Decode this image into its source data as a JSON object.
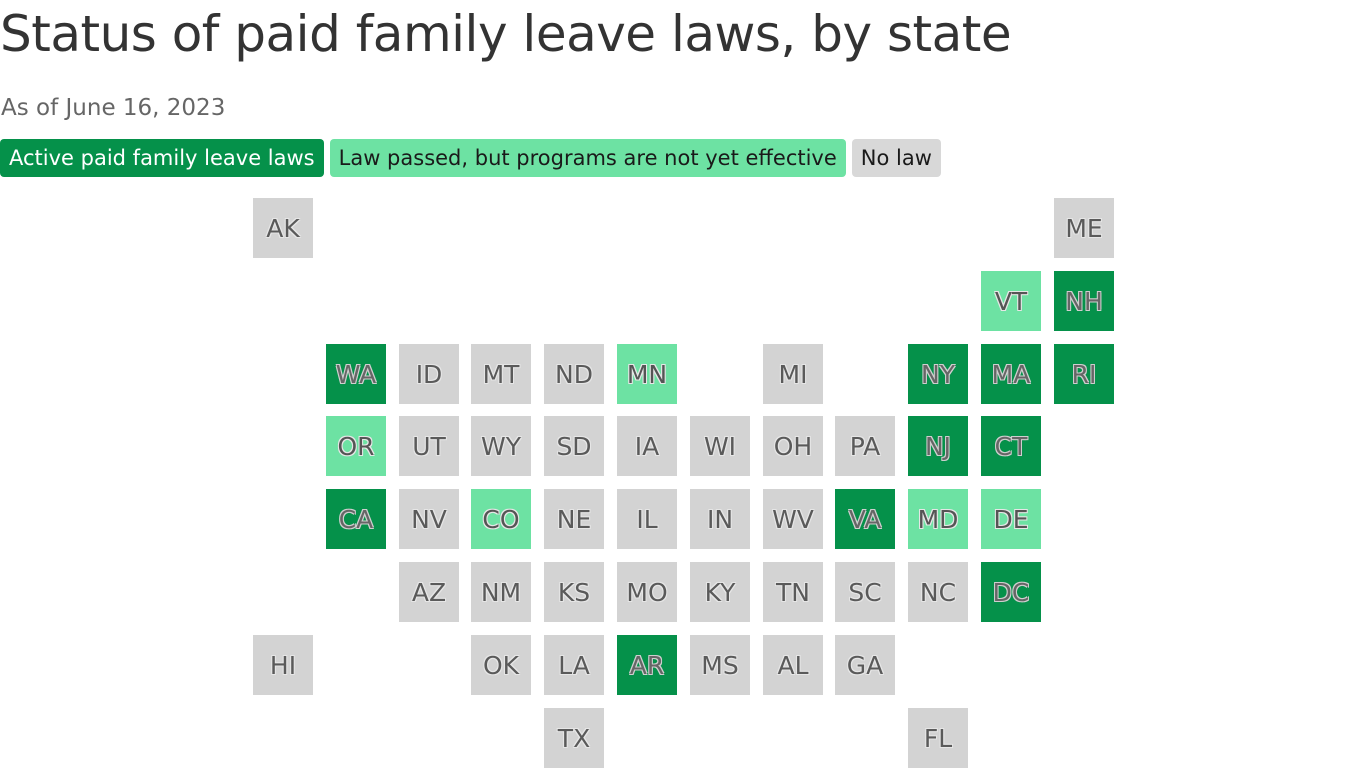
{
  "title": "Status of paid family leave laws, by state",
  "subtitle": "As of June 16, 2023",
  "legend": {
    "active": "Active paid family leave laws",
    "passed": "Law passed, but programs are not yet effective",
    "nolaw": "No law"
  },
  "colors": {
    "active": "#05914a",
    "passed": "#6de2a3",
    "nolaw": "#d3d3d3"
  },
  "states": [
    {
      "abbr": "AK",
      "status": "nolaw"
    },
    {
      "abbr": "ME",
      "status": "nolaw"
    },
    {
      "abbr": "VT",
      "status": "passed"
    },
    {
      "abbr": "NH",
      "status": "active"
    },
    {
      "abbr": "WA",
      "status": "active"
    },
    {
      "abbr": "ID",
      "status": "nolaw"
    },
    {
      "abbr": "MT",
      "status": "nolaw"
    },
    {
      "abbr": "ND",
      "status": "nolaw"
    },
    {
      "abbr": "MN",
      "status": "passed"
    },
    {
      "abbr": "MI",
      "status": "nolaw"
    },
    {
      "abbr": "NY",
      "status": "active"
    },
    {
      "abbr": "MA",
      "status": "active"
    },
    {
      "abbr": "RI",
      "status": "active"
    },
    {
      "abbr": "OR",
      "status": "passed"
    },
    {
      "abbr": "UT",
      "status": "nolaw"
    },
    {
      "abbr": "WY",
      "status": "nolaw"
    },
    {
      "abbr": "SD",
      "status": "nolaw"
    },
    {
      "abbr": "IA",
      "status": "nolaw"
    },
    {
      "abbr": "WI",
      "status": "nolaw"
    },
    {
      "abbr": "OH",
      "status": "nolaw"
    },
    {
      "abbr": "PA",
      "status": "nolaw"
    },
    {
      "abbr": "NJ",
      "status": "active"
    },
    {
      "abbr": "CT",
      "status": "active"
    },
    {
      "abbr": "CA",
      "status": "active"
    },
    {
      "abbr": "NV",
      "status": "nolaw"
    },
    {
      "abbr": "CO",
      "status": "passed"
    },
    {
      "abbr": "NE",
      "status": "nolaw"
    },
    {
      "abbr": "IL",
      "status": "nolaw"
    },
    {
      "abbr": "IN",
      "status": "nolaw"
    },
    {
      "abbr": "WV",
      "status": "nolaw"
    },
    {
      "abbr": "VA",
      "status": "active"
    },
    {
      "abbr": "MD",
      "status": "passed"
    },
    {
      "abbr": "DE",
      "status": "passed"
    },
    {
      "abbr": "AZ",
      "status": "nolaw"
    },
    {
      "abbr": "NM",
      "status": "nolaw"
    },
    {
      "abbr": "KS",
      "status": "nolaw"
    },
    {
      "abbr": "MO",
      "status": "nolaw"
    },
    {
      "abbr": "KY",
      "status": "nolaw"
    },
    {
      "abbr": "TN",
      "status": "nolaw"
    },
    {
      "abbr": "SC",
      "status": "nolaw"
    },
    {
      "abbr": "NC",
      "status": "nolaw"
    },
    {
      "abbr": "DC",
      "status": "active"
    },
    {
      "abbr": "HI",
      "status": "nolaw"
    },
    {
      "abbr": "OK",
      "status": "nolaw"
    },
    {
      "abbr": "LA",
      "status": "nolaw"
    },
    {
      "abbr": "AR",
      "status": "active"
    },
    {
      "abbr": "MS",
      "status": "nolaw"
    },
    {
      "abbr": "AL",
      "status": "nolaw"
    },
    {
      "abbr": "GA",
      "status": "nolaw"
    },
    {
      "abbr": "TX",
      "status": "nolaw"
    },
    {
      "abbr": "FL",
      "status": "nolaw"
    }
  ]
}
